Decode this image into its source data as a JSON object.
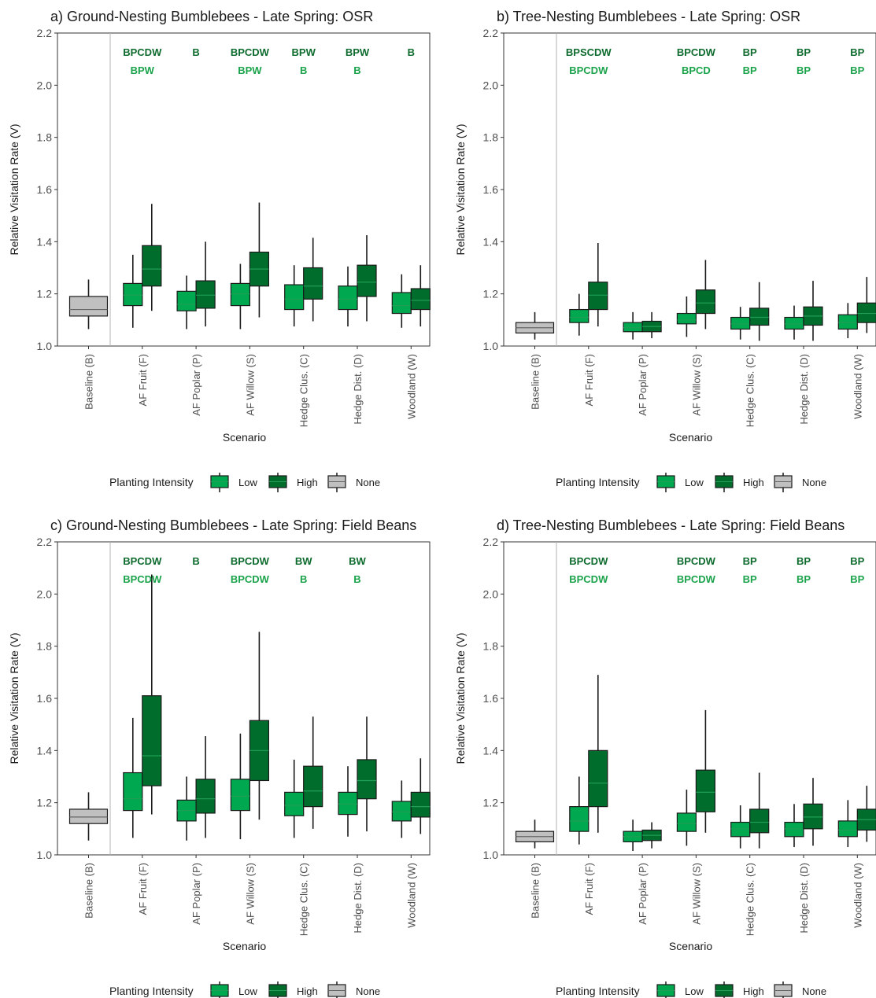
{
  "chart_data": [
    {
      "type": "boxplot",
      "title": "a) Ground-Nesting Bumblebees - Late Spring: OSR",
      "xlabel": "Scenario",
      "ylabel": "Relative Visitation Rate (V)",
      "ylim": [
        1.0,
        2.2
      ],
      "yticks": [
        1.0,
        1.2,
        1.4,
        1.6,
        1.8,
        2.0,
        2.2
      ],
      "y_tick_labels": [
        "1.0",
        "1.2",
        "1.4",
        "1.6",
        "1.8",
        "2.0",
        "2.2"
      ],
      "categories": [
        "Baseline (B)",
        "AF Fruit (F)",
        "AF Poplar (P)",
        "AF Willow (S)",
        "Hedge Clus. (C)",
        "Hedge Dist. (D)",
        "Woodland (W)"
      ],
      "boxes": [
        {
          "category": 0,
          "group": "None",
          "min": 1.065,
          "q1": 1.115,
          "median": 1.14,
          "q3": 1.19,
          "max": 1.255
        },
        {
          "category": 1,
          "group": "Low",
          "min": 1.07,
          "q1": 1.155,
          "median": 1.195,
          "q3": 1.24,
          "max": 1.35
        },
        {
          "category": 1,
          "group": "High",
          "min": 1.135,
          "q1": 1.23,
          "median": 1.295,
          "q3": 1.385,
          "max": 1.545
        },
        {
          "category": 2,
          "group": "Low",
          "min": 1.065,
          "q1": 1.135,
          "median": 1.16,
          "q3": 1.21,
          "max": 1.27
        },
        {
          "category": 2,
          "group": "High",
          "min": 1.075,
          "q1": 1.145,
          "median": 1.195,
          "q3": 1.25,
          "max": 1.4
        },
        {
          "category": 3,
          "group": "Low",
          "min": 1.065,
          "q1": 1.155,
          "median": 1.2,
          "q3": 1.24,
          "max": 1.315
        },
        {
          "category": 3,
          "group": "High",
          "min": 1.11,
          "q1": 1.23,
          "median": 1.295,
          "q3": 1.36,
          "max": 1.55
        },
        {
          "category": 4,
          "group": "Low",
          "min": 1.075,
          "q1": 1.14,
          "median": 1.18,
          "q3": 1.235,
          "max": 1.31
        },
        {
          "category": 4,
          "group": "High",
          "min": 1.095,
          "q1": 1.18,
          "median": 1.23,
          "q3": 1.3,
          "max": 1.415
        },
        {
          "category": 5,
          "group": "Low",
          "min": 1.075,
          "q1": 1.14,
          "median": 1.18,
          "q3": 1.23,
          "max": 1.305
        },
        {
          "category": 5,
          "group": "High",
          "min": 1.095,
          "q1": 1.19,
          "median": 1.245,
          "q3": 1.31,
          "max": 1.425
        },
        {
          "category": 6,
          "group": "Low",
          "min": 1.07,
          "q1": 1.125,
          "median": 1.155,
          "q3": 1.205,
          "max": 1.275
        },
        {
          "category": 6,
          "group": "High",
          "min": 1.075,
          "q1": 1.14,
          "median": 1.175,
          "q3": 1.22,
          "max": 1.31
        }
      ],
      "significance": [
        {
          "category": 1,
          "high": "BPCDW",
          "low": "BPW"
        },
        {
          "category": 2,
          "high": "B",
          "low": ""
        },
        {
          "category": 3,
          "high": "BPCDW",
          "low": "BPW"
        },
        {
          "category": 4,
          "high": "BPW",
          "low": "B"
        },
        {
          "category": 5,
          "high": "BPW",
          "low": "B"
        },
        {
          "category": 6,
          "high": "B",
          "low": ""
        }
      ],
      "legend": {
        "title": "Planting Intensity",
        "items": [
          {
            "label": "Low",
            "color": "#00a84f"
          },
          {
            "label": "High",
            "color": "#006d2c"
          },
          {
            "label": "None",
            "color": "#c0c0c0"
          }
        ],
        "placement": "bottom"
      }
    },
    {
      "type": "boxplot",
      "title": "b) Tree-Nesting Bumblebees - Late Spring: OSR",
      "xlabel": "Scenario",
      "ylabel": "Relative Visitation Rate (V)",
      "ylim": [
        1.0,
        2.2
      ],
      "yticks": [
        1.0,
        1.2,
        1.4,
        1.6,
        1.8,
        2.0,
        2.2
      ],
      "y_tick_labels": [
        "1.0",
        "1.2",
        "1.4",
        "1.6",
        "1.8",
        "2.0",
        "2.2"
      ],
      "categories": [
        "Baseline (B)",
        "AF Fruit (F)",
        "AF Poplar (P)",
        "AF Willow (S)",
        "Hedge Clus. (C)",
        "Hedge Dist. (D)",
        "Woodland (W)"
      ],
      "boxes": [
        {
          "category": 0,
          "group": "None",
          "min": 1.025,
          "q1": 1.05,
          "median": 1.07,
          "q3": 1.09,
          "max": 1.13
        },
        {
          "category": 1,
          "group": "Low",
          "min": 1.04,
          "q1": 1.09,
          "median": 1.11,
          "q3": 1.14,
          "max": 1.2
        },
        {
          "category": 1,
          "group": "High",
          "min": 1.075,
          "q1": 1.14,
          "median": 1.195,
          "q3": 1.245,
          "max": 1.395
        },
        {
          "category": 2,
          "group": "Low",
          "min": 1.025,
          "q1": 1.055,
          "median": 1.07,
          "q3": 1.09,
          "max": 1.13
        },
        {
          "category": 2,
          "group": "High",
          "min": 1.03,
          "q1": 1.055,
          "median": 1.075,
          "q3": 1.095,
          "max": 1.13
        },
        {
          "category": 3,
          "group": "Low",
          "min": 1.035,
          "q1": 1.085,
          "median": 1.1,
          "q3": 1.125,
          "max": 1.19
        },
        {
          "category": 3,
          "group": "High",
          "min": 1.065,
          "q1": 1.125,
          "median": 1.165,
          "q3": 1.215,
          "max": 1.33
        },
        {
          "category": 4,
          "group": "Low",
          "min": 1.025,
          "q1": 1.065,
          "median": 1.085,
          "q3": 1.11,
          "max": 1.15
        },
        {
          "category": 4,
          "group": "High",
          "min": 1.02,
          "q1": 1.08,
          "median": 1.11,
          "q3": 1.145,
          "max": 1.245
        },
        {
          "category": 5,
          "group": "Low",
          "min": 1.025,
          "q1": 1.065,
          "median": 1.085,
          "q3": 1.11,
          "max": 1.155
        },
        {
          "category": 5,
          "group": "High",
          "min": 1.02,
          "q1": 1.08,
          "median": 1.115,
          "q3": 1.15,
          "max": 1.25
        },
        {
          "category": 6,
          "group": "Low",
          "min": 1.03,
          "q1": 1.065,
          "median": 1.09,
          "q3": 1.12,
          "max": 1.165
        },
        {
          "category": 6,
          "group": "High",
          "min": 1.05,
          "q1": 1.09,
          "median": 1.125,
          "q3": 1.165,
          "max": 1.265
        }
      ],
      "significance": [
        {
          "category": 1,
          "high": "BPSCDW",
          "low": "BPCDW"
        },
        {
          "category": 3,
          "high": "BPCDW",
          "low": "BPCD"
        },
        {
          "category": 4,
          "high": "BP",
          "low": "BP"
        },
        {
          "category": 5,
          "high": "BP",
          "low": "BP"
        },
        {
          "category": 6,
          "high": "BP",
          "low": "BP"
        }
      ],
      "legend": {
        "title": "Planting Intensity",
        "items": [
          {
            "label": "Low",
            "color": "#00a84f"
          },
          {
            "label": "High",
            "color": "#006d2c"
          },
          {
            "label": "None",
            "color": "#c0c0c0"
          }
        ],
        "placement": "bottom"
      }
    },
    {
      "type": "boxplot",
      "title": "c) Ground-Nesting Bumblebees - Late Spring: Field Beans",
      "xlabel": "Scenario",
      "ylabel": "Relative Visitation Rate (V)",
      "ylim": [
        1.0,
        2.2
      ],
      "yticks": [
        1.0,
        1.2,
        1.4,
        1.6,
        1.8,
        2.0,
        2.2
      ],
      "y_tick_labels": [
        "1.0",
        "1.2",
        "1.4",
        "1.6",
        "1.8",
        "2.0",
        "2.2"
      ],
      "categories": [
        "Baseline (B)",
        "AF Fruit (F)",
        "AF Poplar (P)",
        "AF Willow (S)",
        "Hedge Clus. (C)",
        "Hedge Dist. (D)",
        "Woodland (W)"
      ],
      "boxes": [
        {
          "category": 0,
          "group": "None",
          "min": 1.055,
          "q1": 1.12,
          "median": 1.145,
          "q3": 1.175,
          "max": 1.24
        },
        {
          "category": 1,
          "group": "Low",
          "min": 1.065,
          "q1": 1.17,
          "median": 1.215,
          "q3": 1.315,
          "max": 1.525
        },
        {
          "category": 1,
          "group": "High",
          "min": 1.155,
          "q1": 1.265,
          "median": 1.38,
          "q3": 1.61,
          "max": 2.075
        },
        {
          "category": 2,
          "group": "Low",
          "min": 1.055,
          "q1": 1.13,
          "median": 1.17,
          "q3": 1.21,
          "max": 1.3
        },
        {
          "category": 2,
          "group": "High",
          "min": 1.065,
          "q1": 1.16,
          "median": 1.215,
          "q3": 1.29,
          "max": 1.455
        },
        {
          "category": 3,
          "group": "Low",
          "min": 1.06,
          "q1": 1.17,
          "median": 1.225,
          "q3": 1.29,
          "max": 1.465
        },
        {
          "category": 3,
          "group": "High",
          "min": 1.135,
          "q1": 1.285,
          "median": 1.4,
          "q3": 1.515,
          "max": 1.855
        },
        {
          "category": 4,
          "group": "Low",
          "min": 1.065,
          "q1": 1.15,
          "median": 1.19,
          "q3": 1.24,
          "max": 1.365
        },
        {
          "category": 4,
          "group": "High",
          "min": 1.1,
          "q1": 1.185,
          "median": 1.245,
          "q3": 1.34,
          "max": 1.53
        },
        {
          "category": 5,
          "group": "Low",
          "min": 1.07,
          "q1": 1.155,
          "median": 1.195,
          "q3": 1.24,
          "max": 1.34
        },
        {
          "category": 5,
          "group": "High",
          "min": 1.09,
          "q1": 1.215,
          "median": 1.285,
          "q3": 1.365,
          "max": 1.53
        },
        {
          "category": 6,
          "group": "Low",
          "min": 1.065,
          "q1": 1.13,
          "median": 1.165,
          "q3": 1.205,
          "max": 1.285
        },
        {
          "category": 6,
          "group": "High",
          "min": 1.08,
          "q1": 1.145,
          "median": 1.185,
          "q3": 1.24,
          "max": 1.37
        }
      ],
      "significance": [
        {
          "category": 1,
          "high": "BPCDW",
          "low": "BPCDW"
        },
        {
          "category": 2,
          "high": "B",
          "low": ""
        },
        {
          "category": 3,
          "high": "BPCDW",
          "low": "BPCDW"
        },
        {
          "category": 4,
          "high": "BW",
          "low": "B"
        },
        {
          "category": 5,
          "high": "BW",
          "low": "B"
        }
      ],
      "legend": {
        "title": "Planting Intensity",
        "items": [
          {
            "label": "Low",
            "color": "#00a84f"
          },
          {
            "label": "High",
            "color": "#006d2c"
          },
          {
            "label": "None",
            "color": "#c0c0c0"
          }
        ],
        "placement": "bottom"
      }
    },
    {
      "type": "boxplot",
      "title": "d) Tree-Nesting Bumblebees - Late Spring: Field Beans",
      "xlabel": "Scenario",
      "ylabel": "Relative Visitation Rate (V)",
      "ylim": [
        1.0,
        2.2
      ],
      "yticks": [
        1.0,
        1.2,
        1.4,
        1.6,
        1.8,
        2.0,
        2.2
      ],
      "y_tick_labels": [
        "1.0",
        "1.2",
        "1.4",
        "1.6",
        "1.8",
        "2.0",
        "2.2"
      ],
      "categories": [
        "Baseline (B)",
        "AF Fruit (F)",
        "AF Poplar (P)",
        "AF Willow (S)",
        "Hedge Clus. (C)",
        "Hedge Dist. (D)",
        "Woodland (W)"
      ],
      "boxes": [
        {
          "category": 0,
          "group": "None",
          "min": 1.025,
          "q1": 1.05,
          "median": 1.07,
          "q3": 1.09,
          "max": 1.135
        },
        {
          "category": 1,
          "group": "Low",
          "min": 1.04,
          "q1": 1.09,
          "median": 1.13,
          "q3": 1.185,
          "max": 1.3
        },
        {
          "category": 1,
          "group": "High",
          "min": 1.085,
          "q1": 1.185,
          "median": 1.275,
          "q3": 1.4,
          "max": 1.69
        },
        {
          "category": 2,
          "group": "Low",
          "min": 1.015,
          "q1": 1.05,
          "median": 1.07,
          "q3": 1.09,
          "max": 1.135
        },
        {
          "category": 2,
          "group": "High",
          "min": 1.025,
          "q1": 1.055,
          "median": 1.075,
          "q3": 1.095,
          "max": 1.125
        },
        {
          "category": 3,
          "group": "Low",
          "min": 1.035,
          "q1": 1.09,
          "median": 1.12,
          "q3": 1.16,
          "max": 1.25
        },
        {
          "category": 3,
          "group": "High",
          "min": 1.085,
          "q1": 1.165,
          "median": 1.24,
          "q3": 1.325,
          "max": 1.555
        },
        {
          "category": 4,
          "group": "Low",
          "min": 1.025,
          "q1": 1.07,
          "median": 1.1,
          "q3": 1.125,
          "max": 1.19
        },
        {
          "category": 4,
          "group": "High",
          "min": 1.025,
          "q1": 1.085,
          "median": 1.125,
          "q3": 1.175,
          "max": 1.315
        },
        {
          "category": 5,
          "group": "Low",
          "min": 1.03,
          "q1": 1.07,
          "median": 1.1,
          "q3": 1.125,
          "max": 1.195
        },
        {
          "category": 5,
          "group": "High",
          "min": 1.035,
          "q1": 1.1,
          "median": 1.145,
          "q3": 1.195,
          "max": 1.295
        },
        {
          "category": 6,
          "group": "Low",
          "min": 1.03,
          "q1": 1.07,
          "median": 1.095,
          "q3": 1.13,
          "max": 1.21
        },
        {
          "category": 6,
          "group": "High",
          "min": 1.05,
          "q1": 1.095,
          "median": 1.135,
          "q3": 1.175,
          "max": 1.265
        }
      ],
      "significance": [
        {
          "category": 1,
          "high": "BPCDW",
          "low": "BPCDW"
        },
        {
          "category": 3,
          "high": "BPCDW",
          "low": "BPCDW"
        },
        {
          "category": 4,
          "high": "BP",
          "low": "BP"
        },
        {
          "category": 5,
          "high": "BP",
          "low": "BP"
        },
        {
          "category": 6,
          "high": "BP",
          "low": "BP"
        }
      ],
      "legend": {
        "title": "Planting Intensity",
        "items": [
          {
            "label": "Low",
            "color": "#00a84f"
          },
          {
            "label": "High",
            "color": "#006d2c"
          },
          {
            "label": "None",
            "color": "#c0c0c0"
          }
        ],
        "placement": "bottom"
      }
    }
  ]
}
